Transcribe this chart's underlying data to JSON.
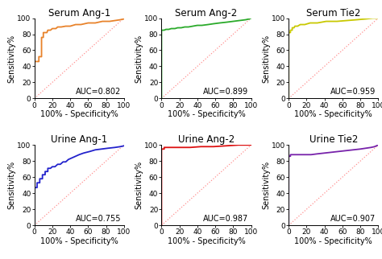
{
  "panels": [
    {
      "title": "Serum Ang-1",
      "auc": "AUC=0.802",
      "color": "#E8822A",
      "curve": [
        [
          0,
          0
        ],
        [
          0,
          46
        ],
        [
          5,
          46
        ],
        [
          5,
          52
        ],
        [
          8,
          52
        ],
        [
          8,
          76
        ],
        [
          10,
          76
        ],
        [
          10,
          82
        ],
        [
          14,
          82
        ],
        [
          15,
          85
        ],
        [
          18,
          85
        ],
        [
          20,
          87
        ],
        [
          24,
          87
        ],
        [
          26,
          89
        ],
        [
          30,
          89
        ],
        [
          35,
          90
        ],
        [
          40,
          90
        ],
        [
          46,
          92
        ],
        [
          52,
          92
        ],
        [
          60,
          94
        ],
        [
          68,
          94
        ],
        [
          76,
          96
        ],
        [
          84,
          96
        ],
        [
          90,
          97
        ],
        [
          96,
          98
        ],
        [
          100,
          99
        ]
      ]
    },
    {
      "title": "Serum Ang-2",
      "auc": "AUC=0.899",
      "color": "#2AAA2A",
      "curve": [
        [
          0,
          0
        ],
        [
          0,
          85
        ],
        [
          3,
          85
        ],
        [
          5,
          86
        ],
        [
          8,
          86
        ],
        [
          11,
          87
        ],
        [
          15,
          87
        ],
        [
          18,
          88
        ],
        [
          22,
          88
        ],
        [
          26,
          89
        ],
        [
          30,
          89
        ],
        [
          35,
          90
        ],
        [
          40,
          91
        ],
        [
          45,
          91
        ],
        [
          52,
          92
        ],
        [
          58,
          93
        ],
        [
          65,
          94
        ],
        [
          73,
          95
        ],
        [
          80,
          96
        ],
        [
          87,
          97
        ],
        [
          94,
          98
        ],
        [
          98,
          99
        ],
        [
          100,
          100
        ]
      ]
    },
    {
      "title": "Serum Tie2",
      "auc": "AUC=0.959",
      "color": "#C8C800",
      "curve": [
        [
          0,
          0
        ],
        [
          0,
          82
        ],
        [
          2,
          82
        ],
        [
          2,
          85
        ],
        [
          4,
          85
        ],
        [
          4,
          88
        ],
        [
          6,
          88
        ],
        [
          7,
          90
        ],
        [
          10,
          90
        ],
        [
          13,
          92
        ],
        [
          18,
          92
        ],
        [
          24,
          94
        ],
        [
          32,
          94
        ],
        [
          42,
          96
        ],
        [
          54,
          96
        ],
        [
          65,
          97
        ],
        [
          76,
          98
        ],
        [
          86,
          99
        ],
        [
          94,
          100
        ],
        [
          100,
          100
        ]
      ]
    },
    {
      "title": "Urine Ang-1",
      "auc": "AUC=0.755",
      "color": "#2222CC",
      "curve": [
        [
          0,
          0
        ],
        [
          0,
          47
        ],
        [
          3,
          47
        ],
        [
          3,
          53
        ],
        [
          6,
          53
        ],
        [
          6,
          58
        ],
        [
          9,
          58
        ],
        [
          9,
          63
        ],
        [
          12,
          63
        ],
        [
          12,
          67
        ],
        [
          15,
          67
        ],
        [
          15,
          71
        ],
        [
          18,
          71
        ],
        [
          20,
          73
        ],
        [
          23,
          73
        ],
        [
          26,
          76
        ],
        [
          29,
          76
        ],
        [
          32,
          79
        ],
        [
          35,
          79
        ],
        [
          38,
          82
        ],
        [
          42,
          84
        ],
        [
          46,
          86
        ],
        [
          50,
          88
        ],
        [
          55,
          90
        ],
        [
          62,
          92
        ],
        [
          68,
          94
        ],
        [
          75,
          95
        ],
        [
          82,
          96
        ],
        [
          90,
          97
        ],
        [
          96,
          98
        ],
        [
          100,
          99
        ]
      ]
    },
    {
      "title": "Urine Ang-2",
      "auc": "AUC=0.987",
      "color": "#DD1111",
      "curve": [
        [
          0,
          0
        ],
        [
          0,
          95
        ],
        [
          3,
          95
        ],
        [
          3,
          97
        ],
        [
          6,
          97
        ],
        [
          10,
          97
        ],
        [
          15,
          97
        ],
        [
          22,
          97
        ],
        [
          32,
          97
        ],
        [
          44,
          98
        ],
        [
          58,
          98
        ],
        [
          72,
          99
        ],
        [
          86,
          100
        ],
        [
          100,
          100
        ]
      ]
    },
    {
      "title": "Urine Tie2",
      "auc": "AUC=0.907",
      "color": "#7722AA",
      "curve": [
        [
          0,
          0
        ],
        [
          0,
          86
        ],
        [
          2,
          86
        ],
        [
          2,
          88
        ],
        [
          5,
          88
        ],
        [
          8,
          88
        ],
        [
          12,
          88
        ],
        [
          18,
          88
        ],
        [
          25,
          88
        ],
        [
          32,
          89
        ],
        [
          40,
          90
        ],
        [
          48,
          91
        ],
        [
          56,
          92
        ],
        [
          64,
          93
        ],
        [
          72,
          94
        ],
        [
          80,
          95
        ],
        [
          86,
          96
        ],
        [
          92,
          97
        ],
        [
          96,
          98
        ],
        [
          98,
          99
        ],
        [
          100,
          100
        ]
      ]
    }
  ],
  "xlabel": "100% - Specificity%",
  "ylabel": "Sensitivity%",
  "xlim": [
    0,
    100
  ],
  "ylim": [
    0,
    100
  ],
  "xticks": [
    0,
    20,
    40,
    60,
    80,
    100
  ],
  "yticks": [
    0,
    20,
    40,
    60,
    80,
    100
  ],
  "title_fontsize": 8.5,
  "label_fontsize": 7,
  "tick_fontsize": 6.5,
  "auc_fontsize": 7,
  "diagonal_color": "#FF9090",
  "diagonal_linestyle": "dotted",
  "background_color": "#ffffff"
}
